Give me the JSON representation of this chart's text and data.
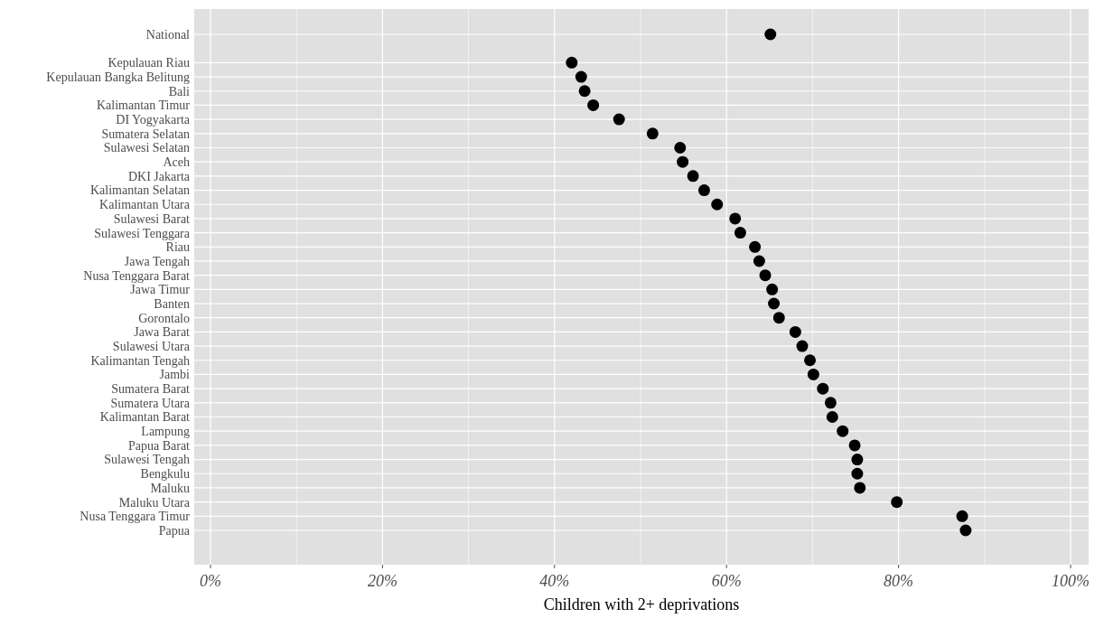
{
  "chart_data": {
    "type": "scatter",
    "xlabel": "Children with 2+ deprivations",
    "orientation": "horizontal",
    "categories": [
      "National",
      null,
      "Kepulauan Riau",
      "Kepulauan Bangka Belitung",
      "Bali",
      "Kalimantan Timur",
      "DI Yogyakarta",
      "Sumatera Selatan",
      "Sulawesi Selatan",
      "Aceh",
      "DKI Jakarta",
      "Kalimantan Selatan",
      "Kalimantan Utara",
      "Sulawesi Barat",
      "Sulawesi Tenggara",
      "Riau",
      "Jawa Tengah",
      "Nusa Tenggara Barat",
      "Jawa Timur",
      "Banten",
      "Gorontalo",
      "Jawa Barat",
      "Sulawesi Utara",
      "Kalimantan Tengah",
      "Jambi",
      "Sumatera Barat",
      "Sumatera Utara",
      "Kalimantan Barat",
      "Lampung",
      "Papua Barat",
      "Sulawesi Tengah",
      "Bengkulu",
      "Maluku",
      "Maluku Utara",
      "Nusa Tenggara Timur",
      "Papua"
    ],
    "series": [
      {
        "color": "#000000",
        "values": [
          65.1,
          null,
          42.0,
          43.1,
          43.5,
          44.5,
          47.5,
          51.4,
          54.6,
          54.9,
          56.1,
          57.4,
          58.9,
          61.0,
          61.6,
          63.3,
          63.8,
          64.5,
          65.3,
          65.5,
          66.1,
          68.0,
          68.8,
          69.7,
          70.1,
          71.2,
          72.1,
          72.3,
          73.5,
          74.9,
          75.2,
          75.2,
          75.5,
          79.8,
          87.4,
          87.8
        ]
      }
    ],
    "xlim": [
      0,
      100
    ],
    "xticks": [
      {
        "value": 0,
        "label": "0%"
      },
      {
        "value": 20,
        "label": "20%"
      },
      {
        "value": 40,
        "label": "40%"
      },
      {
        "value": 60,
        "label": "60%"
      },
      {
        "value": 80,
        "label": "80%"
      },
      {
        "value": 100,
        "label": "100%"
      }
    ],
    "grid": true,
    "marker": "circle"
  }
}
